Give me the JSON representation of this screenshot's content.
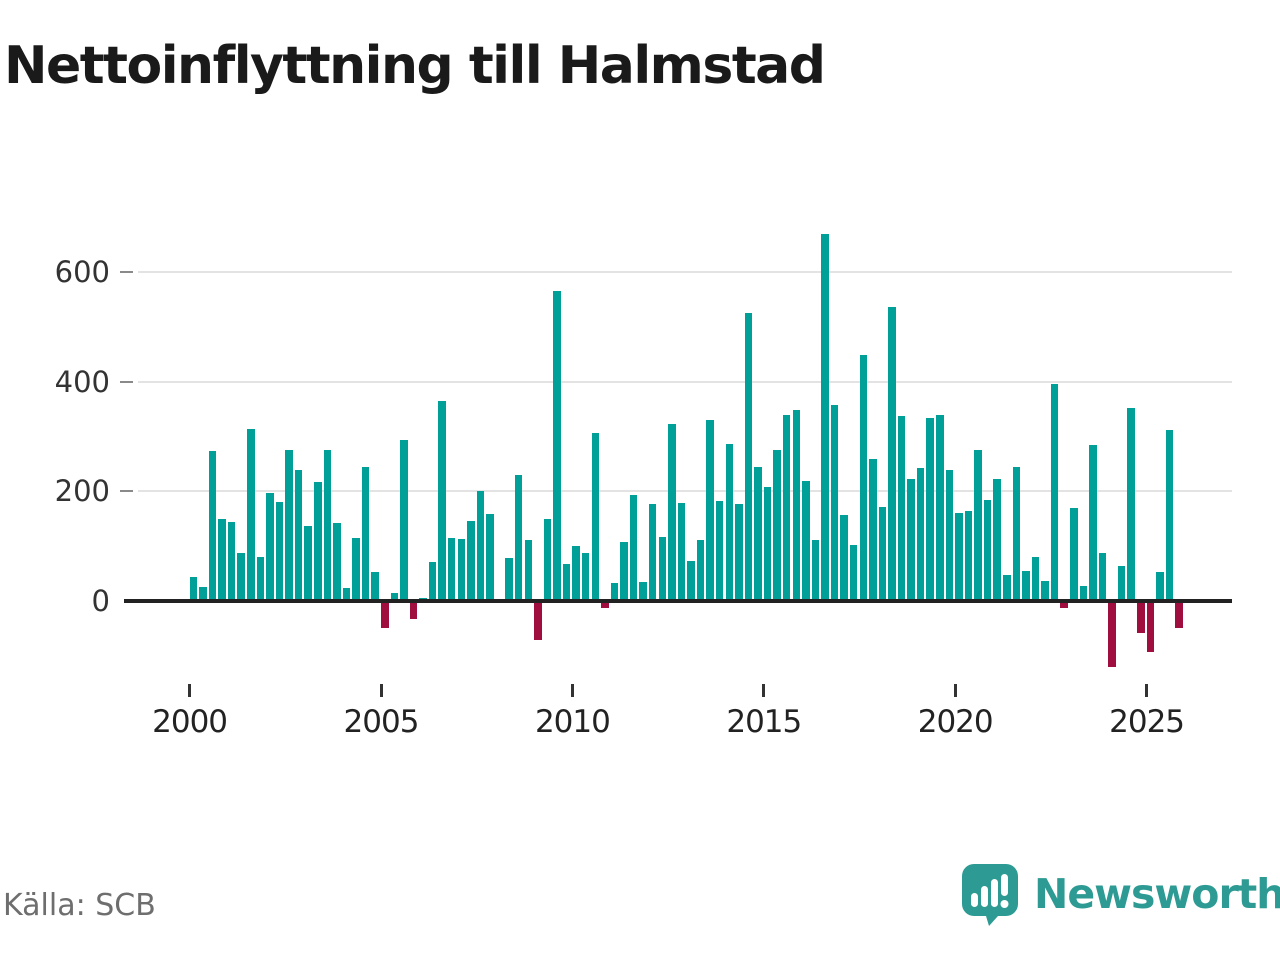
{
  "title": "Nettoinflyttning till Halmstad",
  "source": "Källa: SCB",
  "logo": {
    "brand": "Newsworthy"
  },
  "colors": {
    "positive_bar": "#00a099",
    "negative_bar": "#a00d3f",
    "axis_line": "#222222",
    "gridline": "#e3e3e3",
    "tick_label": "#333333",
    "title_text": "#1a1a1a",
    "source_text": "#6e6e6e",
    "brand_teal": "#2d9b93"
  },
  "chart_data": {
    "type": "bar",
    "title": "Nettoinflyttning till Halmstad",
    "xlabel": "",
    "ylabel": "",
    "frequency": "quarterly",
    "x_range": [
      "2000 Q1",
      "2025 Q4"
    ],
    "ylim": [
      -150,
      700
    ],
    "y_gridlines": [
      200,
      400,
      600
    ],
    "y_tick_labels": [
      "0",
      "200",
      "400",
      "600"
    ],
    "y_ticks": [
      0,
      200,
      400,
      600
    ],
    "x_tick_years": [
      2000,
      2005,
      2010,
      2015,
      2020,
      2025
    ],
    "x_tick_labels": [
      "2000",
      "2005",
      "2010",
      "2015",
      "2020",
      "2025"
    ],
    "grid": true,
    "legend": "none",
    "series": [
      {
        "name": "Nettoinflyttning",
        "points": [
          [
            "2000 Q1",
            43
          ],
          [
            "2000 Q2",
            26
          ],
          [
            "2000 Q3",
            274
          ],
          [
            "2000 Q4",
            149
          ],
          [
            "2001 Q1",
            144
          ],
          [
            "2001 Q2",
            87
          ],
          [
            "2001 Q3",
            313
          ],
          [
            "2001 Q4",
            80
          ],
          [
            "2002 Q1",
            197
          ],
          [
            "2002 Q2",
            181
          ],
          [
            "2002 Q3",
            276
          ],
          [
            "2002 Q4",
            238
          ],
          [
            "2003 Q1",
            137
          ],
          [
            "2003 Q2",
            217
          ],
          [
            "2003 Q3",
            276
          ],
          [
            "2003 Q4",
            142
          ],
          [
            "2004 Q1",
            24
          ],
          [
            "2004 Q2",
            114
          ],
          [
            "2004 Q3",
            244
          ],
          [
            "2004 Q4",
            52
          ],
          [
            "2005 Q1",
            -49
          ],
          [
            "2005 Q2",
            14
          ],
          [
            "2005 Q3",
            294
          ],
          [
            "2005 Q4",
            -33
          ],
          [
            "2006 Q1",
            5
          ],
          [
            "2006 Q2",
            71
          ],
          [
            "2006 Q3",
            365
          ],
          [
            "2006 Q4",
            114
          ],
          [
            "2007 Q1",
            113
          ],
          [
            "2007 Q2",
            146
          ],
          [
            "2007 Q3",
            200
          ],
          [
            "2007 Q4",
            159
          ],
          [
            "2008 Q1",
            0
          ],
          [
            "2008 Q2",
            78
          ],
          [
            "2008 Q3",
            229
          ],
          [
            "2008 Q4",
            112
          ],
          [
            "2009 Q1",
            -72
          ],
          [
            "2009 Q2",
            150
          ],
          [
            "2009 Q3",
            565
          ],
          [
            "2009 Q4",
            68
          ],
          [
            "2010 Q1",
            100
          ],
          [
            "2010 Q2",
            88
          ],
          [
            "2010 Q3",
            307
          ],
          [
            "2010 Q4",
            -12
          ],
          [
            "2011 Q1",
            32
          ],
          [
            "2011 Q2",
            107
          ],
          [
            "2011 Q3",
            194
          ],
          [
            "2011 Q4",
            35
          ],
          [
            "2012 Q1",
            177
          ],
          [
            "2012 Q2",
            117
          ],
          [
            "2012 Q3",
            323
          ],
          [
            "2012 Q4",
            179
          ],
          [
            "2013 Q1",
            73
          ],
          [
            "2013 Q2",
            112
          ],
          [
            "2013 Q3",
            330
          ],
          [
            "2013 Q4",
            183
          ],
          [
            "2014 Q1",
            287
          ],
          [
            "2014 Q2",
            176
          ],
          [
            "2014 Q3",
            525
          ],
          [
            "2014 Q4",
            244
          ],
          [
            "2015 Q1",
            208
          ],
          [
            "2015 Q2",
            275
          ],
          [
            "2015 Q3",
            340
          ],
          [
            "2015 Q4",
            349
          ],
          [
            "2016 Q1",
            219
          ],
          [
            "2016 Q2",
            111
          ],
          [
            "2016 Q3",
            670
          ],
          [
            "2016 Q4",
            357
          ],
          [
            "2017 Q1",
            157
          ],
          [
            "2017 Q2",
            102
          ],
          [
            "2017 Q3",
            448
          ],
          [
            "2017 Q4",
            258
          ],
          [
            "2018 Q1",
            171
          ],
          [
            "2018 Q2",
            536
          ],
          [
            "2018 Q3",
            337
          ],
          [
            "2018 Q4",
            223
          ],
          [
            "2019 Q1",
            243
          ],
          [
            "2019 Q2",
            334
          ],
          [
            "2019 Q3",
            340
          ],
          [
            "2019 Q4",
            238
          ],
          [
            "2020 Q1",
            161
          ],
          [
            "2020 Q2",
            164
          ],
          [
            "2020 Q3",
            276
          ],
          [
            "2020 Q4",
            185
          ],
          [
            "2021 Q1",
            223
          ],
          [
            "2021 Q2",
            47
          ],
          [
            "2021 Q3",
            244
          ],
          [
            "2021 Q4",
            55
          ],
          [
            "2022 Q1",
            81
          ],
          [
            "2022 Q2",
            36
          ],
          [
            "2022 Q3",
            395
          ],
          [
            "2022 Q4",
            -13
          ],
          [
            "2023 Q1",
            170
          ],
          [
            "2023 Q2",
            27
          ],
          [
            "2023 Q3",
            285
          ],
          [
            "2023 Q4",
            87
          ],
          [
            "2024 Q1",
            -121
          ],
          [
            "2024 Q2",
            63
          ],
          [
            "2024 Q3",
            352
          ],
          [
            "2024 Q4",
            -59
          ],
          [
            "2025 Q1",
            -93
          ],
          [
            "2025 Q2",
            52
          ],
          [
            "2025 Q3",
            312
          ],
          [
            "2025 Q4",
            -50
          ]
        ]
      }
    ]
  }
}
